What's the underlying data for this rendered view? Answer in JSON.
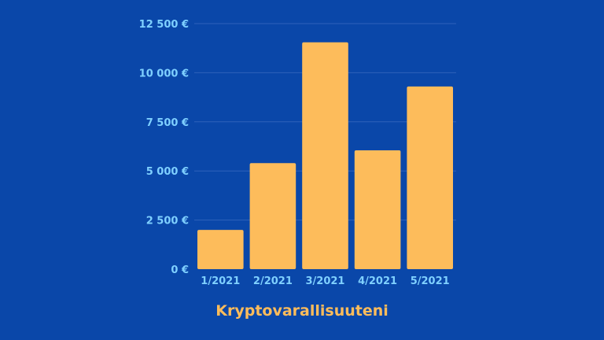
{
  "colors": {
    "background": "#0a47a9",
    "bar": "#fdbc5b",
    "axis_text": "#7fd0ff",
    "title": "#fdbc5b",
    "grid": "#2e62bb"
  },
  "chart_data": {
    "type": "bar",
    "title": "Kryptovarallisuuteni",
    "xlabel": "",
    "ylabel": "",
    "categories": [
      "1/2021",
      "2/2021",
      "3/2021",
      "4/2021",
      "5/2021"
    ],
    "values": [
      2000,
      5400,
      11550,
      6050,
      9300
    ],
    "ylim": [
      0,
      12500
    ],
    "yticks": [
      0,
      2500,
      5000,
      7500,
      10000,
      12500
    ],
    "ytick_labels": [
      "0 €",
      "2 500 €",
      "5 000 €",
      "7 500 €",
      "10 000 €",
      "12 500 €"
    ],
    "grid": true,
    "legend": "none"
  }
}
